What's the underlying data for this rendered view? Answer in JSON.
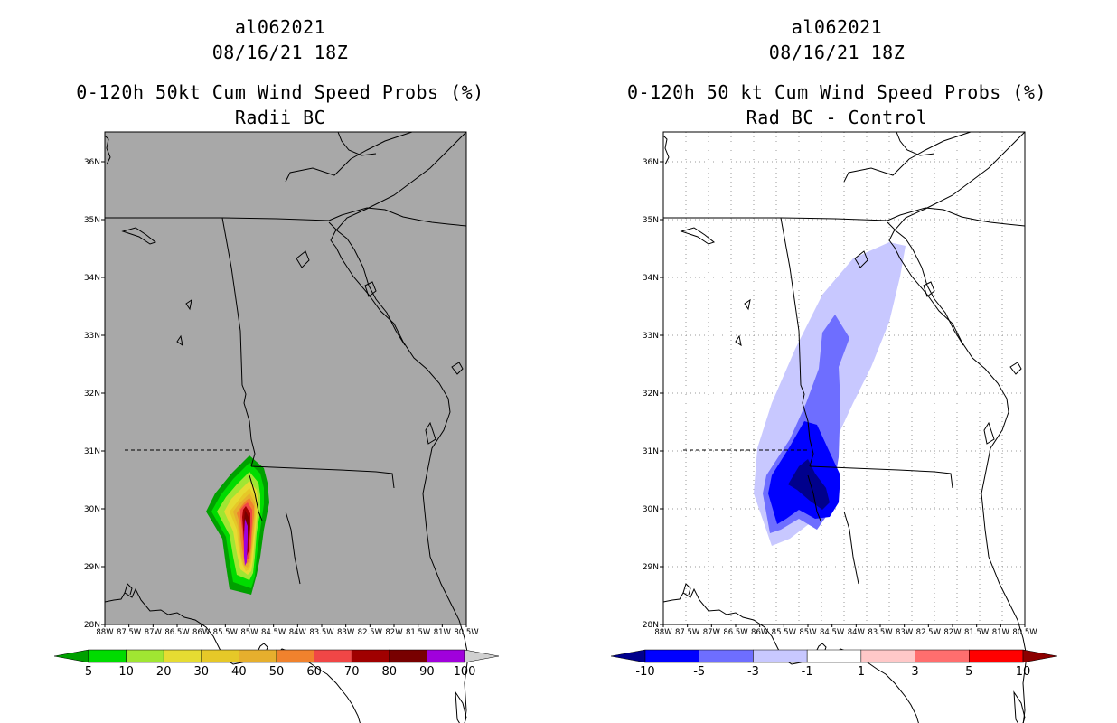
{
  "left_panel": {
    "storm_id": "al062021",
    "datetime": "08/16/21 18Z",
    "title": "0-120h 50kt Cum Wind Speed Probs (%)",
    "subtitle": "Radii BC",
    "background_color": "#a8a8a8",
    "colorbar": {
      "labels": [
        "5",
        "10",
        "20",
        "30",
        "40",
        "50",
        "60",
        "70",
        "80",
        "90",
        "100"
      ],
      "colors": [
        "#00a000",
        "#00dc00",
        "#a0e632",
        "#e6dc32",
        "#e6c828",
        "#e6af2d",
        "#f0822d",
        "#f04646",
        "#a00000",
        "#780000",
        "#a000dc",
        "#d0d0d0"
      ]
    }
  },
  "right_panel": {
    "storm_id": "al062021",
    "datetime": "08/16/21 18Z",
    "title": "0-120h 50 kt Cum Wind Speed Probs (%)",
    "subtitle": "Rad BC - Control",
    "background_color": "#ffffff",
    "colorbar": {
      "labels": [
        "-10",
        "-5",
        "-3",
        "-1",
        "1",
        "3",
        "5",
        "10"
      ],
      "colors": [
        "#00008c",
        "#0000ff",
        "#6e6eff",
        "#c8c8ff",
        "#ffffff",
        "#ffc8c8",
        "#ff6e6e",
        "#ff0000",
        "#8c0000"
      ]
    }
  },
  "axes": {
    "lat_labels": [
      "36N",
      "35N",
      "34N",
      "33N",
      "32N",
      "31N",
      "30N",
      "29N",
      "28N"
    ],
    "lon_labels": [
      "88W",
      "87.5W",
      "87W",
      "86.5W",
      "86W",
      "85.5W",
      "85W",
      "84.5W",
      "84W",
      "83.5W",
      "83W",
      "82.5W",
      "82W",
      "81.5W",
      "81W",
      "80.5W"
    ]
  }
}
